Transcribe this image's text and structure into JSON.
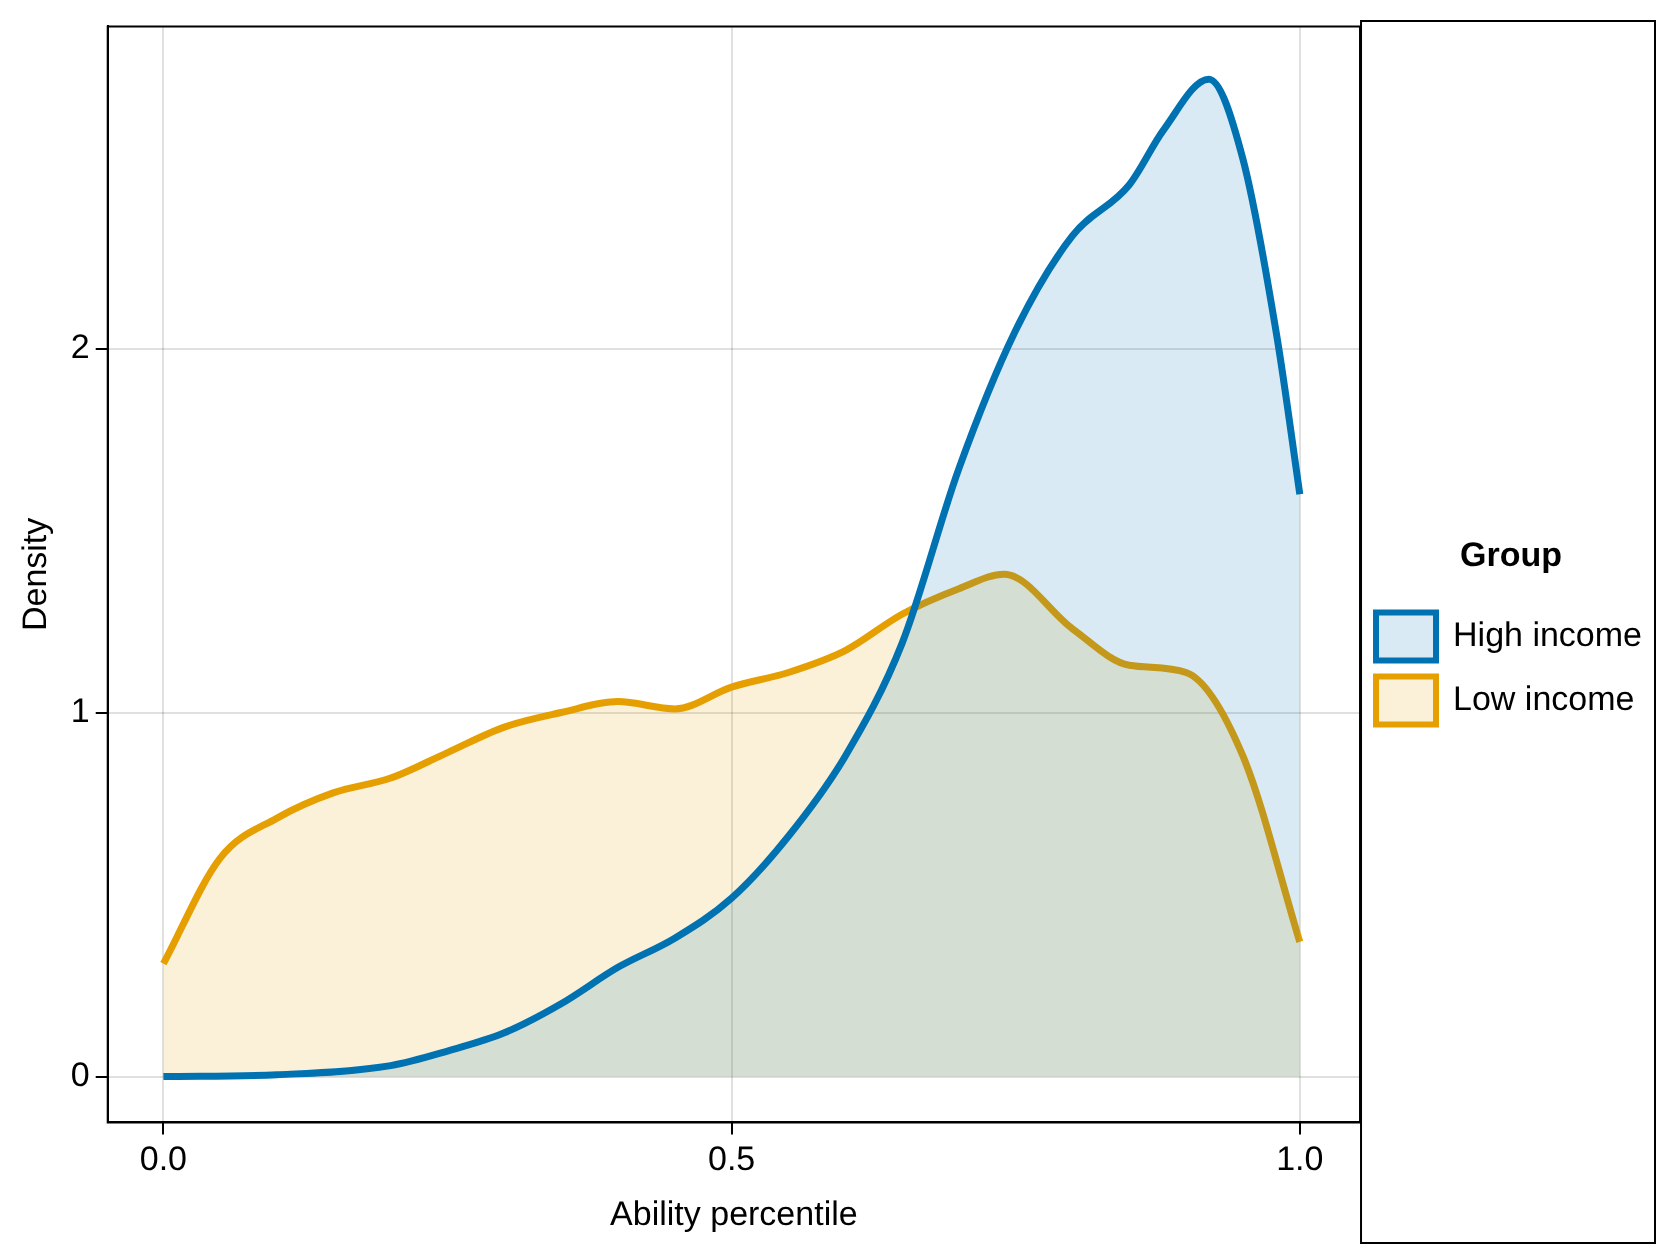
{
  "chart_data": {
    "type": "area",
    "xlabel": "Ability percentile",
    "ylabel": "Density",
    "legend_title": "Group",
    "legend": "right",
    "grid": true,
    "xlim": [
      -0.049,
      1.053
    ],
    "ylim": [
      -0.126,
      2.885
    ],
    "xticks": [
      {
        "value": 0,
        "label": "0.0"
      },
      0.5,
      {
        "value": 1,
        "label": "1.0"
      }
    ],
    "yticks": [
      0,
      1,
      2
    ],
    "series": [
      {
        "name": "High income",
        "color": "#0072b2",
        "x": [
          0,
          0.1,
          0.2,
          0.25,
          0.3,
          0.35,
          0.4,
          0.45,
          0.5,
          0.55,
          0.6,
          0.65,
          0.7,
          0.75,
          0.8,
          0.85,
          0.88,
          0.92,
          0.95,
          0.98,
          1.0
        ],
        "values": [
          0,
          0.005,
          0.03,
          0.07,
          0.12,
          0.2,
          0.3,
          0.38,
          0.49,
          0.66,
          0.88,
          1.19,
          1.67,
          2.05,
          2.31,
          2.45,
          2.6,
          2.74,
          2.52,
          2.03,
          1.6
        ]
      },
      {
        "name": "Low income",
        "color": "#e69f00",
        "x": [
          0,
          0.05,
          0.1,
          0.15,
          0.2,
          0.25,
          0.3,
          0.35,
          0.4,
          0.45,
          0.5,
          0.55,
          0.6,
          0.65,
          0.7,
          0.74,
          0.8,
          0.85,
          0.9,
          0.95,
          1.0
        ],
        "values": [
          0.31,
          0.6,
          0.71,
          0.78,
          0.82,
          0.89,
          0.96,
          1.0,
          1.03,
          1.01,
          1.07,
          1.11,
          1.17,
          1.27,
          1.34,
          1.38,
          1.23,
          1.13,
          1.11,
          0.88,
          0.37
        ]
      }
    ]
  }
}
